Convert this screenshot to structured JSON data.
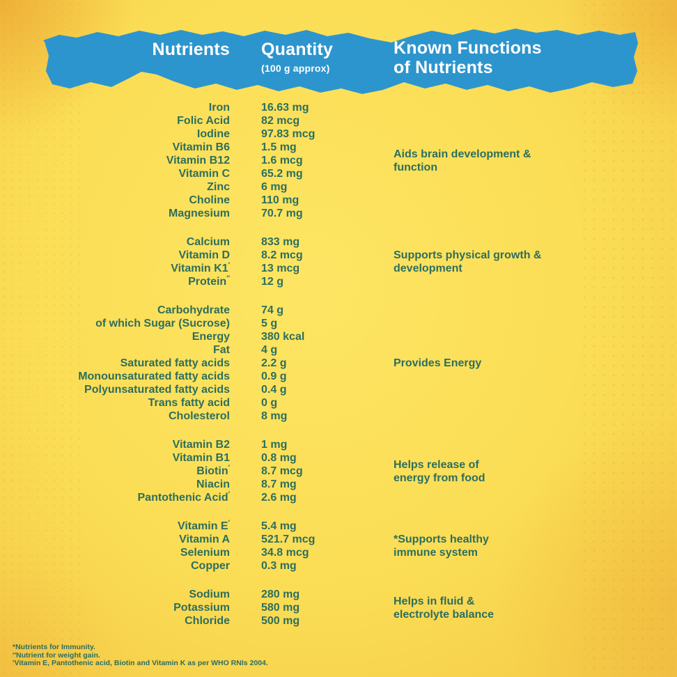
{
  "colors": {
    "background_yellow": "#fbdd55",
    "banner_blue": "#2d95cd",
    "header_text": "#ffffff",
    "body_text": "#2d6e5e",
    "texture_orange": "#d88022"
  },
  "header": {
    "col_nutrients": "Nutrients",
    "col_quantity": "Quantity",
    "col_quantity_sub": "(100 g approx)",
    "col_functions_line1": "Known Functions",
    "col_functions_line2": "of Nutrients"
  },
  "table": {
    "groups": [
      {
        "function": "Aids brain development &\nfunction",
        "rows": [
          {
            "name": "Iron",
            "qty": "16.63 mg"
          },
          {
            "name": "Folic Acid",
            "qty": "82 mcg"
          },
          {
            "name": "Iodine",
            "qty": "97.83 mcg"
          },
          {
            "name": "Vitamin B6",
            "qty": "1.5 mg"
          },
          {
            "name": "Vitamin B12",
            "qty": "1.6 mcg"
          },
          {
            "name": "Vitamin C",
            "qty": "65.2 mg"
          },
          {
            "name": "Zinc",
            "qty": "6 mg"
          },
          {
            "name": "Choline",
            "qty": "110 mg"
          },
          {
            "name": "Magnesium",
            "qty": "70.7 mg"
          }
        ]
      },
      {
        "function": "Supports physical growth &\ndevelopment",
        "rows": [
          {
            "name": "Calcium",
            "qty": "833 mg"
          },
          {
            "name": "Vitamin D",
            "qty": "8.2 mcg"
          },
          {
            "name": "Vitamin K1",
            "sup": "′",
            "qty": "13 mcg"
          },
          {
            "name": "Protein",
            "sup": "″",
            "qty": "12 g"
          }
        ]
      },
      {
        "function": "Provides Energy",
        "rows": [
          {
            "name": "Carbohydrate",
            "qty": "74 g"
          },
          {
            "name": "of which Sugar (Sucrose)",
            "qty": "5 g"
          },
          {
            "name": "Energy",
            "qty": "380 kcal"
          },
          {
            "name": "Fat",
            "qty": "4 g"
          },
          {
            "name": "Saturated fatty acids",
            "qty": "2.2 g"
          },
          {
            "name": "Monounsaturated fatty acids",
            "qty": "0.9 g"
          },
          {
            "name": "Polyunsaturated fatty acids",
            "qty": "0.4 g"
          },
          {
            "name": "Trans fatty acid",
            "qty": "0 g"
          },
          {
            "name": "Cholesterol",
            "qty": "8 mg"
          }
        ]
      },
      {
        "function": "Helps release of\nenergy from food",
        "rows": [
          {
            "name": "Vitamin B2",
            "qty": "1 mg"
          },
          {
            "name": "Vitamin B1",
            "qty": "0.8 mg"
          },
          {
            "name": "Biotin",
            "sup": "′",
            "qty": "8.7 mcg"
          },
          {
            "name": "Niacin",
            "qty": "8.7 mg"
          },
          {
            "name": "Pantothenic Acid",
            "sup": "′",
            "qty": "2.6 mg"
          }
        ]
      },
      {
        "function": "*Supports healthy\nimmune system",
        "rows": [
          {
            "name": "Vitamin E",
            "sup": "′",
            "qty": "5.4 mg"
          },
          {
            "name": "Vitamin A",
            "qty": "521.7 mcg"
          },
          {
            "name": "Selenium",
            "qty": "34.8 mcg"
          },
          {
            "name": "Copper",
            "qty": "0.3 mg"
          }
        ]
      },
      {
        "function": "Helps in fluid &\nelectrolyte balance",
        "rows": [
          {
            "name": "Sodium",
            "qty": "280 mg"
          },
          {
            "name": "Potassium",
            "qty": "580 mg"
          },
          {
            "name": "Chloride",
            "qty": "500 mg"
          }
        ]
      }
    ]
  },
  "footnotes": [
    "*Nutrients for Immunity.",
    "″Nutrient for weight gain.",
    "′Vitamin E, Pantothenic acid, Biotin and Vitamin K as per WHO RNIs 2004."
  ]
}
